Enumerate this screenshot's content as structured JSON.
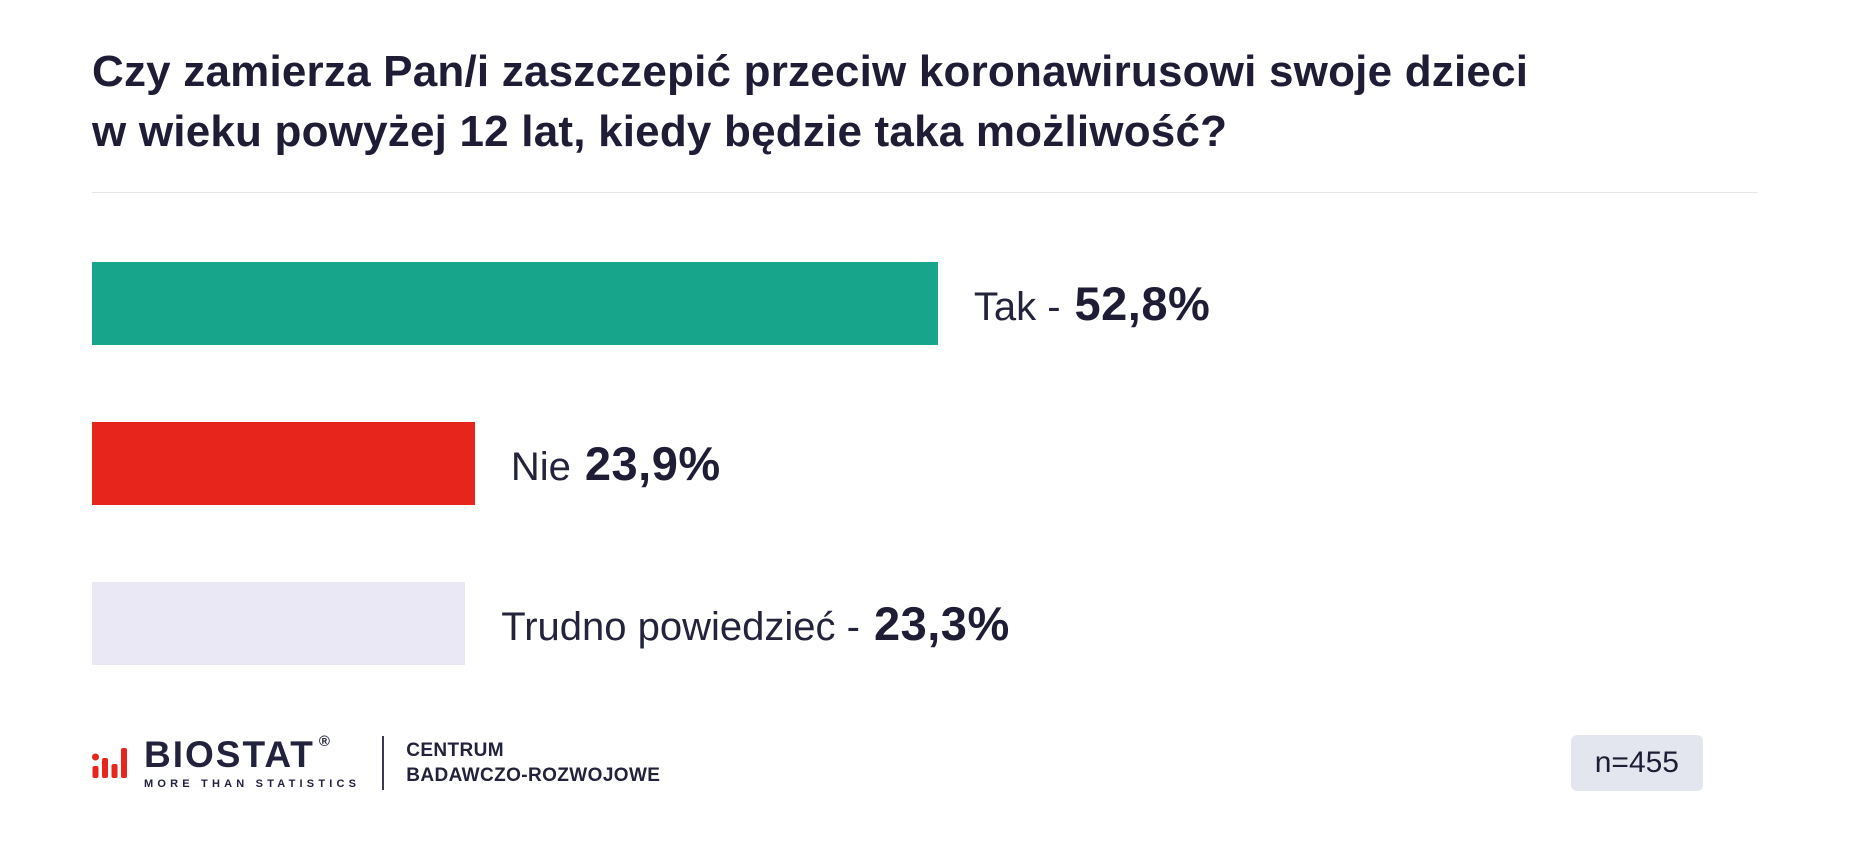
{
  "title_lines": [
    "Czy zamierza Pan/i zaszczepić przeciw koronawirusowi swoje dzieci",
    "w wieku powyżej 12 lat, kiedy będzie taka możliwość?"
  ],
  "chart_data": {
    "type": "bar",
    "orientation": "horizontal",
    "title": "Czy zamierza Pan/i zaszczepić przeciw koronawirusowi swoje dzieci w wieku powyżej 12 lat, kiedy będzie taka możliwość?",
    "unit": "%",
    "categories": [
      "Tak",
      "Nie",
      "Trudno powiedzieć"
    ],
    "values": [
      52.8,
      23.9,
      23.3
    ],
    "items": [
      {
        "label": "Tak -",
        "value": 52.8,
        "value_text": "52,8%",
        "color": "#17a68b"
      },
      {
        "label": "Nie",
        "value": 23.9,
        "value_text": "23,9%",
        "color": "#e8251c"
      },
      {
        "label": "Trudno powiedzieć -",
        "value": 23.3,
        "value_text": "23,3%",
        "color": "#e9e8f4"
      }
    ],
    "sample_size": "n=455",
    "legend": false,
    "grid": false
  },
  "footer": {
    "logo": {
      "wordmark": "BIOSTAT",
      "registered": "®",
      "tagline": "MORE THAN STATISTICS",
      "subtitle_line1": "CENTRUM",
      "subtitle_line2": "BADAWCZO-ROZWOJOWE",
      "icon": "bar-chart-logo-icon",
      "accent_color": "#e8251c"
    },
    "sample_size": "n=455"
  }
}
